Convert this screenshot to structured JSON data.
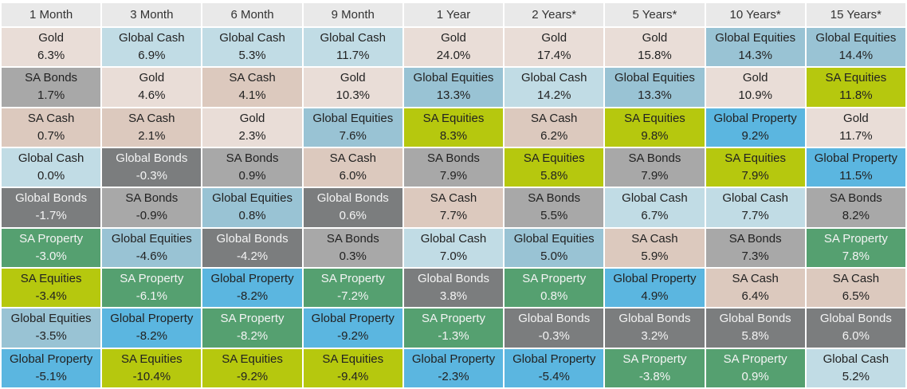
{
  "chart_data": {
    "type": "table",
    "columns": [
      "1 Month",
      "3 Month",
      "6 Month",
      "9 Month",
      "1 Year",
      "2 Years*",
      "5 Years*",
      "10 Years*",
      "15 Years*"
    ],
    "asset_colors": {
      "Gold": "#e9ddd7",
      "Global Cash": "#c1dce5",
      "SA Bonds": "#a8a8a8",
      "SA Cash": "#dcc9be",
      "Global Bonds": "#7b7d7e",
      "SA Property": "#55a070",
      "SA Equities": "#b6c80e",
      "Global Equities": "#99c3d4",
      "Global Property": "#5bb6e0"
    },
    "rankings": [
      [
        {
          "asset": "Gold",
          "value": "6.3%"
        },
        {
          "asset": "SA Bonds",
          "value": "1.7%"
        },
        {
          "asset": "SA Cash",
          "value": "0.7%"
        },
        {
          "asset": "Global Cash",
          "value": "0.0%"
        },
        {
          "asset": "Global Bonds",
          "value": "-1.7%"
        },
        {
          "asset": "SA Property",
          "value": "-3.0%"
        },
        {
          "asset": "SA Equities",
          "value": "-3.4%"
        },
        {
          "asset": "Global Equities",
          "value": "-3.5%"
        },
        {
          "asset": "Global Property",
          "value": "-5.1%"
        }
      ],
      [
        {
          "asset": "Global Cash",
          "value": "6.9%"
        },
        {
          "asset": "Gold",
          "value": "4.6%"
        },
        {
          "asset": "SA Cash",
          "value": "2.1%"
        },
        {
          "asset": "Global Bonds",
          "value": "-0.3%"
        },
        {
          "asset": "SA Bonds",
          "value": "-0.9%"
        },
        {
          "asset": "Global Equities",
          "value": "-4.6%"
        },
        {
          "asset": "SA Property",
          "value": "-6.1%"
        },
        {
          "asset": "Global Property",
          "value": "-8.2%"
        },
        {
          "asset": "SA Equities",
          "value": "-10.4%"
        }
      ],
      [
        {
          "asset": "Global Cash",
          "value": "5.3%"
        },
        {
          "asset": "SA Cash",
          "value": "4.1%"
        },
        {
          "asset": "Gold",
          "value": "2.3%"
        },
        {
          "asset": "SA Bonds",
          "value": "0.9%"
        },
        {
          "asset": "Global Equities",
          "value": "0.8%"
        },
        {
          "asset": "Global Bonds",
          "value": "-4.2%"
        },
        {
          "asset": "Global Property",
          "value": "-8.2%"
        },
        {
          "asset": "SA Property",
          "value": "-8.2%"
        },
        {
          "asset": "SA Equities",
          "value": "-9.2%"
        }
      ],
      [
        {
          "asset": "Global Cash",
          "value": "11.7%"
        },
        {
          "asset": "Gold",
          "value": "10.3%"
        },
        {
          "asset": "Global Equities",
          "value": "7.6%"
        },
        {
          "asset": "SA Cash",
          "value": "6.0%"
        },
        {
          "asset": "Global Bonds",
          "value": "0.6%"
        },
        {
          "asset": "SA Bonds",
          "value": "0.3%"
        },
        {
          "asset": "SA Property",
          "value": "-7.2%"
        },
        {
          "asset": "Global Property",
          "value": "-9.2%"
        },
        {
          "asset": "SA Equities",
          "value": "-9.4%"
        }
      ],
      [
        {
          "asset": "Gold",
          "value": "24.0%"
        },
        {
          "asset": "Global Equities",
          "value": "13.3%"
        },
        {
          "asset": "SA Equities",
          "value": "8.3%"
        },
        {
          "asset": "SA Bonds",
          "value": "7.9%"
        },
        {
          "asset": "SA Cash",
          "value": "7.7%"
        },
        {
          "asset": "Global Cash",
          "value": "7.0%"
        },
        {
          "asset": "Global Bonds",
          "value": "3.8%"
        },
        {
          "asset": "SA Property",
          "value": "-1.3%"
        },
        {
          "asset": "Global Property",
          "value": "-2.3%"
        }
      ],
      [
        {
          "asset": "Gold",
          "value": "17.4%"
        },
        {
          "asset": "Global Cash",
          "value": "14.2%"
        },
        {
          "asset": "SA Cash",
          "value": "6.2%"
        },
        {
          "asset": "SA Equities",
          "value": "5.8%"
        },
        {
          "asset": "SA Bonds",
          "value": "5.5%"
        },
        {
          "asset": "Global Equities",
          "value": "5.0%"
        },
        {
          "asset": "SA Property",
          "value": "0.8%"
        },
        {
          "asset": "Global Bonds",
          "value": "-0.3%"
        },
        {
          "asset": "Global Property",
          "value": "-5.4%"
        }
      ],
      [
        {
          "asset": "Gold",
          "value": "15.8%"
        },
        {
          "asset": "Global Equities",
          "value": "13.3%"
        },
        {
          "asset": "SA Equities",
          "value": "9.8%"
        },
        {
          "asset": "SA Bonds",
          "value": "7.9%"
        },
        {
          "asset": "Global Cash",
          "value": "6.7%"
        },
        {
          "asset": "SA Cash",
          "value": "5.9%"
        },
        {
          "asset": "Global Property",
          "value": "4.9%"
        },
        {
          "asset": "Global Bonds",
          "value": "3.2%"
        },
        {
          "asset": "SA Property",
          "value": "-3.8%"
        }
      ],
      [
        {
          "asset": "Global Equities",
          "value": "14.3%"
        },
        {
          "asset": "Gold",
          "value": "10.9%"
        },
        {
          "asset": "Global Property",
          "value": "9.2%"
        },
        {
          "asset": "SA Equities",
          "value": "7.9%"
        },
        {
          "asset": "Global Cash",
          "value": "7.7%"
        },
        {
          "asset": "SA Bonds",
          "value": "7.3%"
        },
        {
          "asset": "SA Cash",
          "value": "6.4%"
        },
        {
          "asset": "Global Bonds",
          "value": "5.8%"
        },
        {
          "asset": "SA Property",
          "value": "0.9%"
        }
      ],
      [
        {
          "asset": "Global Equities",
          "value": "14.4%"
        },
        {
          "asset": "SA Equities",
          "value": "11.8%"
        },
        {
          "asset": "Gold",
          "value": "11.7%"
        },
        {
          "asset": "Global Property",
          "value": "11.5%"
        },
        {
          "asset": "SA Bonds",
          "value": "8.2%"
        },
        {
          "asset": "SA Property",
          "value": "7.8%"
        },
        {
          "asset": "SA Cash",
          "value": "6.5%"
        },
        {
          "asset": "Global Bonds",
          "value": "6.0%"
        },
        {
          "asset": "Global Cash",
          "value": "5.2%"
        }
      ]
    ]
  }
}
